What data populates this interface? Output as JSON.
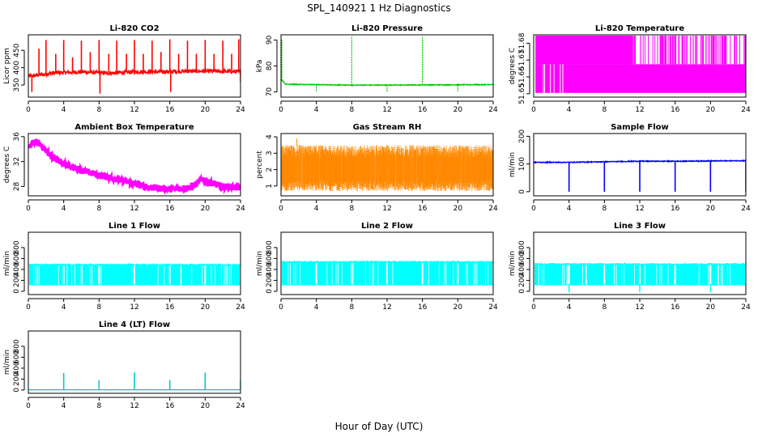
{
  "figure": {
    "main_title": "SPL_140921  1 Hz Diagnostics",
    "xlabel": "Hour of Day (UTC)"
  },
  "chart_data": [
    {
      "id": "co2",
      "type": "line",
      "title": "Li-820 CO2",
      "ylabel": "Licor ppm",
      "color": "#ff0000",
      "xlim": [
        0,
        24
      ],
      "ylim": [
        315,
        495
      ],
      "yticks": [
        350,
        400,
        450
      ],
      "xticks": [
        0,
        4,
        8,
        12,
        16,
        20,
        24
      ],
      "baseline": [
        [
          0,
          375
        ],
        [
          3,
          385
        ],
        [
          6,
          388
        ],
        [
          9,
          384
        ],
        [
          12,
          388
        ],
        [
          15,
          388
        ],
        [
          18,
          390
        ],
        [
          21,
          390
        ],
        [
          24,
          388
        ]
      ],
      "noise": 6,
      "spikes": [
        [
          0.4,
          330
        ],
        [
          1.2,
          455
        ],
        [
          2,
          480
        ],
        [
          3.1,
          440
        ],
        [
          4,
          480
        ],
        [
          5,
          430
        ],
        [
          6,
          478
        ],
        [
          7,
          445
        ],
        [
          8,
          480
        ],
        [
          8.1,
          325
        ],
        [
          9.1,
          440
        ],
        [
          10,
          478
        ],
        [
          11.1,
          440
        ],
        [
          12,
          480
        ],
        [
          13,
          440
        ],
        [
          14,
          478
        ],
        [
          15,
          445
        ],
        [
          16,
          482
        ],
        [
          16.1,
          330
        ],
        [
          17,
          440
        ],
        [
          18,
          478
        ],
        [
          19,
          440
        ],
        [
          20,
          480
        ],
        [
          21,
          440
        ],
        [
          22,
          478
        ],
        [
          23,
          440
        ],
        [
          23.8,
          482
        ],
        [
          24,
          360
        ]
      ]
    },
    {
      "id": "pressure",
      "type": "line",
      "title": "Li-820 Pressure",
      "ylabel": "kPa",
      "color": "#00cc00",
      "xlim": [
        0,
        24
      ],
      "ylim": [
        68,
        92
      ],
      "yticks": [
        70,
        80,
        90
      ],
      "xticks": [
        0,
        4,
        8,
        12,
        16,
        20,
        24
      ],
      "baseline": [
        [
          0,
          75
        ],
        [
          0.5,
          73
        ],
        [
          8,
          72.6
        ],
        [
          16,
          72.7
        ],
        [
          24,
          72.8
        ]
      ],
      "noise": 0.15,
      "spikes": [
        [
          0.1,
          90
        ],
        [
          4,
          70
        ],
        [
          8,
          91.5
        ],
        [
          12,
          70
        ],
        [
          16,
          91.5
        ],
        [
          20,
          70
        ],
        [
          24,
          91.5
        ]
      ]
    },
    {
      "id": "temperature",
      "type": "step",
      "title": "Li-820 Temperature",
      "ylabel": "degrees C",
      "color": "#ff00ff",
      "xlim": [
        0,
        24
      ],
      "ylim": [
        51.648,
        51.685
      ],
      "yticks": [
        51.65,
        51.66,
        51.67,
        51.68
      ],
      "xticks": [
        0,
        4,
        8,
        12,
        16,
        20,
        24
      ],
      "levels": [
        51.6505,
        51.6675,
        51.6845
      ]
    },
    {
      "id": "ambient",
      "type": "line",
      "title": "Ambient Box Temperature",
      "ylabel": "degrees C",
      "color": "#ff00ff",
      "xlim": [
        0,
        24
      ],
      "ylim": [
        26.5,
        36.5
      ],
      "yticks": [
        28,
        32,
        36
      ],
      "xticks": [
        0,
        4,
        8,
        12,
        16,
        20,
        24
      ],
      "baseline": [
        [
          0,
          34.5
        ],
        [
          0.8,
          35.3
        ],
        [
          1.5,
          34.6
        ],
        [
          2.5,
          33
        ],
        [
          4,
          31.6
        ],
        [
          6,
          30.6
        ],
        [
          8,
          29.8
        ],
        [
          10,
          29.2
        ],
        [
          12,
          28.4
        ],
        [
          14,
          27.8
        ],
        [
          16,
          27.6
        ],
        [
          18,
          27.8
        ],
        [
          19,
          28.4
        ],
        [
          19.6,
          29.3
        ],
        [
          20.5,
          28.6
        ],
        [
          22,
          28
        ],
        [
          24,
          27.8
        ]
      ],
      "noise": 0.55
    },
    {
      "id": "rh",
      "type": "scatter-band",
      "title": "Gas Stream RH",
      "ylabel": "percent",
      "color": "#ff8800",
      "xlim": [
        0,
        24
      ],
      "ylim": [
        0.4,
        4.2
      ],
      "yticks": [
        1,
        2,
        3,
        4
      ],
      "xticks": [
        0,
        4,
        8,
        12,
        16,
        20,
        24
      ],
      "center": 2.05,
      "lower": [
        0.7,
        1.4
      ],
      "upper": [
        2.7,
        3.5
      ]
    },
    {
      "id": "sampleflow",
      "type": "line",
      "title": "Sample Flow",
      "ylabel": "ml/min",
      "color": "#0000ff",
      "xlim": [
        0,
        24
      ],
      "ylim": [
        -15,
        210
      ],
      "yticks": [
        0,
        100,
        200
      ],
      "xticks": [
        0,
        4,
        8,
        12,
        16,
        20,
        24
      ],
      "baseline": [
        [
          0,
          106
        ],
        [
          4,
          106
        ],
        [
          8,
          108
        ],
        [
          12,
          110
        ],
        [
          16,
          110
        ],
        [
          20,
          111
        ],
        [
          24,
          112
        ]
      ],
      "noise": 1.5,
      "spikes": [
        [
          4,
          0
        ],
        [
          8,
          0
        ],
        [
          12,
          0
        ],
        [
          16,
          0
        ],
        [
          20,
          0
        ],
        [
          24,
          0
        ]
      ]
    },
    {
      "id": "line1",
      "type": "band",
      "title": "Line 1 Flow",
      "ylabel": "ml/min",
      "color": "#00ffff",
      "xlim": [
        0,
        24
      ],
      "ylim": [
        -60,
        1080
      ],
      "yticks": [
        0,
        200,
        400,
        600,
        800
      ],
      "xticks": [
        0,
        4,
        8,
        12,
        16,
        20,
        24
      ],
      "low": 110,
      "high": 490,
      "notches": [
        4,
        8,
        12,
        16,
        20,
        24
      ]
    },
    {
      "id": "line2",
      "type": "band",
      "title": "Line 2 Flow",
      "ylabel": "ml/min",
      "color": "#00ffff",
      "xlim": [
        0,
        24
      ],
      "ylim": [
        -60,
        1080
      ],
      "yticks": [
        0,
        200,
        400,
        600,
        800
      ],
      "xticks": [
        0,
        4,
        8,
        12,
        16,
        20,
        24
      ],
      "low": 110,
      "high": 540,
      "notches": [
        4,
        8,
        12,
        16,
        20,
        24
      ]
    },
    {
      "id": "line3",
      "type": "band",
      "title": "Line 3 Flow",
      "ylabel": "ml/min",
      "color": "#00ffff",
      "xlim": [
        0,
        24
      ],
      "ylim": [
        -60,
        1080
      ],
      "yticks": [
        0,
        200,
        400,
        600,
        800
      ],
      "xticks": [
        0,
        4,
        8,
        12,
        16,
        20,
        24
      ],
      "low": 110,
      "high": 500,
      "notches": [
        4,
        8,
        12,
        16,
        20,
        24
      ],
      "dips": [
        4,
        12,
        20
      ]
    },
    {
      "id": "line4",
      "type": "line",
      "title": "Line 4 (LT) Flow",
      "ylabel": "ml/min",
      "color": "#00cccc",
      "xlim": [
        0,
        24
      ],
      "ylim": [
        -60,
        1080
      ],
      "yticks": [
        0,
        200,
        400,
        600,
        800
      ],
      "xticks": [
        0,
        4,
        8,
        12,
        16,
        20,
        24
      ],
      "baseline": [
        [
          0,
          5
        ],
        [
          24,
          5
        ]
      ],
      "noise": 1,
      "spikes": [
        [
          4,
          310
        ],
        [
          8,
          180
        ],
        [
          12,
          320
        ],
        [
          16,
          180
        ],
        [
          20,
          320
        ],
        [
          24,
          180
        ]
      ]
    }
  ]
}
